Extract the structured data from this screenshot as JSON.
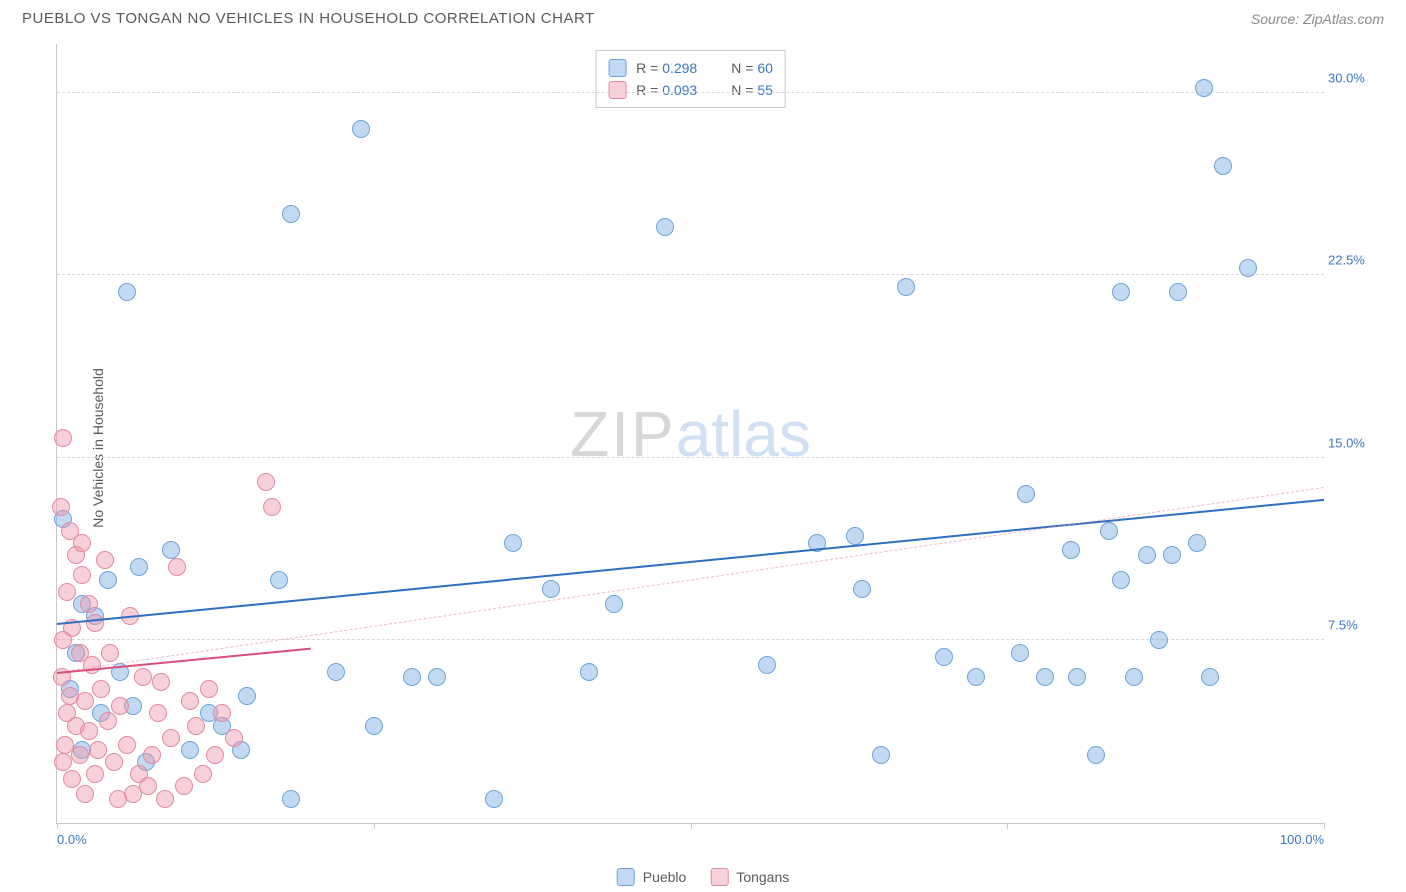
{
  "header": {
    "title": "PUEBLO VS TONGAN NO VEHICLES IN HOUSEHOLD CORRELATION CHART",
    "source_prefix": "Source: ",
    "source_name": "ZipAtlas.com"
  },
  "chart": {
    "type": "scatter",
    "ylabel": "No Vehicles in Household",
    "xlim": [
      0,
      100
    ],
    "ylim": [
      0,
      32
    ],
    "x_start_label": "0.0%",
    "x_end_label": "100.0%",
    "x_label_color": "#3b78c4",
    "xticks": [
      0,
      25,
      50,
      75,
      100
    ],
    "yticks": [
      {
        "v": 7.5,
        "label": "7.5%"
      },
      {
        "v": 15.0,
        "label": "15.0%"
      },
      {
        "v": 22.5,
        "label": "22.5%"
      },
      {
        "v": 30.0,
        "label": "30.0%"
      }
    ],
    "ytick_color": "#3b78c4",
    "grid_color": "#d8d8d8",
    "background_color": "#ffffff",
    "watermark": {
      "part1": "ZIP",
      "part2": "atlas"
    },
    "series": [
      {
        "name": "Pueblo",
        "color_fill": "rgba(120,170,230,0.45)",
        "color_stroke": "#6fa4d8",
        "r": 9,
        "R": "0.298",
        "N": "60",
        "trend": {
          "x1": 0,
          "y1": 8.2,
          "x2": 100,
          "y2": 13.3,
          "color": "#2f6fbf",
          "width": 2.5,
          "dash": false
        },
        "trend_ext": {
          "x1": 0,
          "y1": 6.2,
          "x2": 100,
          "y2": 13.8,
          "color": "rgba(230,140,160,0.6)",
          "width": 1,
          "dash": true
        },
        "points": [
          {
            "x": 5.5,
            "y": 21.8
          },
          {
            "x": 24.0,
            "y": 28.5
          },
          {
            "x": 18.5,
            "y": 25.0
          },
          {
            "x": 48.0,
            "y": 24.5
          },
          {
            "x": 90.5,
            "y": 30.2
          },
          {
            "x": 92.0,
            "y": 27.0
          },
          {
            "x": 94.0,
            "y": 22.8
          },
          {
            "x": 84.0,
            "y": 21.8
          },
          {
            "x": 88.5,
            "y": 21.8
          },
          {
            "x": 67.0,
            "y": 22.0
          },
          {
            "x": 80.0,
            "y": 11.2
          },
          {
            "x": 76.5,
            "y": 13.5
          },
          {
            "x": 83.0,
            "y": 12.0
          },
          {
            "x": 86.0,
            "y": 11.0
          },
          {
            "x": 88.0,
            "y": 11.0
          },
          {
            "x": 84.0,
            "y": 10.0
          },
          {
            "x": 63.0,
            "y": 11.8
          },
          {
            "x": 63.5,
            "y": 9.6
          },
          {
            "x": 60.0,
            "y": 11.5
          },
          {
            "x": 80.5,
            "y": 6.0
          },
          {
            "x": 91.0,
            "y": 6.0
          },
          {
            "x": 85.0,
            "y": 6.0
          },
          {
            "x": 78.0,
            "y": 6.0
          },
          {
            "x": 70.0,
            "y": 6.8
          },
          {
            "x": 72.5,
            "y": 6.0
          },
          {
            "x": 65.0,
            "y": 2.8
          },
          {
            "x": 87.0,
            "y": 7.5
          },
          {
            "x": 90.0,
            "y": 11.5
          },
          {
            "x": 56.0,
            "y": 6.5
          },
          {
            "x": 39.0,
            "y": 9.6
          },
          {
            "x": 42.0,
            "y": 6.2
          },
          {
            "x": 34.5,
            "y": 1.0
          },
          {
            "x": 36.0,
            "y": 11.5
          },
          {
            "x": 28.0,
            "y": 6.0
          },
          {
            "x": 17.5,
            "y": 10.0
          },
          {
            "x": 13.0,
            "y": 4.0
          },
          {
            "x": 14.5,
            "y": 3.0
          },
          {
            "x": 15.0,
            "y": 5.2
          },
          {
            "x": 18.5,
            "y": 1.0
          },
          {
            "x": 9.0,
            "y": 11.2
          },
          {
            "x": 6.5,
            "y": 10.5
          },
          {
            "x": 4.0,
            "y": 10.0
          },
          {
            "x": 3.0,
            "y": 8.5
          },
          {
            "x": 2.0,
            "y": 9.0
          },
          {
            "x": 1.5,
            "y": 7.0
          },
          {
            "x": 5.0,
            "y": 6.2
          },
          {
            "x": 6.0,
            "y": 4.8
          },
          {
            "x": 3.5,
            "y": 4.5
          },
          {
            "x": 2.0,
            "y": 3.0
          },
          {
            "x": 1.0,
            "y": 5.5
          },
          {
            "x": 0.5,
            "y": 12.5
          },
          {
            "x": 10.5,
            "y": 3.0
          },
          {
            "x": 12.0,
            "y": 4.5
          },
          {
            "x": 7.0,
            "y": 2.5
          },
          {
            "x": 22.0,
            "y": 6.2
          },
          {
            "x": 25.0,
            "y": 4.0
          },
          {
            "x": 30.0,
            "y": 6.0
          },
          {
            "x": 44.0,
            "y": 9.0
          },
          {
            "x": 76.0,
            "y": 7.0
          },
          {
            "x": 82.0,
            "y": 2.8
          }
        ]
      },
      {
        "name": "Tongans",
        "color_fill": "rgba(240,150,170,0.45)",
        "color_stroke": "#e48aa0",
        "r": 9,
        "R": "0.093",
        "N": "55",
        "trend": {
          "x1": 0,
          "y1": 6.2,
          "x2": 20,
          "y2": 7.2,
          "color": "#d94f78",
          "width": 2.5,
          "dash": false
        },
        "points": [
          {
            "x": 0.5,
            "y": 15.8
          },
          {
            "x": 1.0,
            "y": 12.0
          },
          {
            "x": 1.5,
            "y": 11.0
          },
          {
            "x": 2.0,
            "y": 10.2
          },
          {
            "x": 0.8,
            "y": 9.5
          },
          {
            "x": 2.5,
            "y": 9.0
          },
          {
            "x": 1.2,
            "y": 8.0
          },
          {
            "x": 3.0,
            "y": 8.2
          },
          {
            "x": 0.5,
            "y": 7.5
          },
          {
            "x": 1.8,
            "y": 7.0
          },
          {
            "x": 2.8,
            "y": 6.5
          },
          {
            "x": 0.4,
            "y": 6.0
          },
          {
            "x": 1.0,
            "y": 5.2
          },
          {
            "x": 2.2,
            "y": 5.0
          },
          {
            "x": 3.5,
            "y": 5.5
          },
          {
            "x": 0.8,
            "y": 4.5
          },
          {
            "x": 1.5,
            "y": 4.0
          },
          {
            "x": 2.5,
            "y": 3.8
          },
          {
            "x": 4.0,
            "y": 4.2
          },
          {
            "x": 5.0,
            "y": 4.8
          },
          {
            "x": 0.6,
            "y": 3.2
          },
          {
            "x": 1.8,
            "y": 2.8
          },
          {
            "x": 3.2,
            "y": 3.0
          },
          {
            "x": 4.5,
            "y": 2.5
          },
          {
            "x": 5.5,
            "y": 3.2
          },
          {
            "x": 6.5,
            "y": 2.0
          },
          {
            "x": 7.5,
            "y": 2.8
          },
          {
            "x": 8.0,
            "y": 4.5
          },
          {
            "x": 9.5,
            "y": 10.5
          },
          {
            "x": 10.5,
            "y": 5.0
          },
          {
            "x": 11.0,
            "y": 4.0
          },
          {
            "x": 12.0,
            "y": 5.5
          },
          {
            "x": 16.5,
            "y": 14.0
          },
          {
            "x": 17.0,
            "y": 13.0
          },
          {
            "x": 6.0,
            "y": 1.2
          },
          {
            "x": 4.8,
            "y": 1.0
          },
          {
            "x": 7.2,
            "y": 1.5
          },
          {
            "x": 8.5,
            "y": 1.0
          },
          {
            "x": 10.0,
            "y": 1.5
          },
          {
            "x": 12.5,
            "y": 2.8
          },
          {
            "x": 13.0,
            "y": 4.5
          },
          {
            "x": 3.8,
            "y": 10.8
          },
          {
            "x": 2.0,
            "y": 11.5
          },
          {
            "x": 0.3,
            "y": 13.0
          },
          {
            "x": 5.8,
            "y": 8.5
          },
          {
            "x": 4.2,
            "y": 7.0
          },
          {
            "x": 6.8,
            "y": 6.0
          },
          {
            "x": 8.2,
            "y": 5.8
          },
          {
            "x": 9.0,
            "y": 3.5
          },
          {
            "x": 11.5,
            "y": 2.0
          },
          {
            "x": 3.0,
            "y": 2.0
          },
          {
            "x": 1.2,
            "y": 1.8
          },
          {
            "x": 0.5,
            "y": 2.5
          },
          {
            "x": 2.2,
            "y": 1.2
          },
          {
            "x": 14.0,
            "y": 3.5
          }
        ]
      }
    ],
    "legend_top": [
      {
        "swatch_fill": "rgba(120,170,230,0.45)",
        "swatch_stroke": "#6fa4d8",
        "r_label": "R = ",
        "r_val": "0.298",
        "n_label": "N = ",
        "n_val": "60"
      },
      {
        "swatch_fill": "rgba(240,150,170,0.45)",
        "swatch_stroke": "#e48aa0",
        "r_label": "R = ",
        "r_val": "0.093",
        "n_label": "N = ",
        "n_val": "55"
      }
    ],
    "legend_bottom": [
      {
        "swatch_fill": "rgba(120,170,230,0.45)",
        "swatch_stroke": "#6fa4d8",
        "label": "Pueblo"
      },
      {
        "swatch_fill": "rgba(240,150,170,0.45)",
        "swatch_stroke": "#e48aa0",
        "label": "Tongans"
      }
    ],
    "stat_value_color": "#3b78c4",
    "stat_label_color": "#5a5a5a"
  }
}
